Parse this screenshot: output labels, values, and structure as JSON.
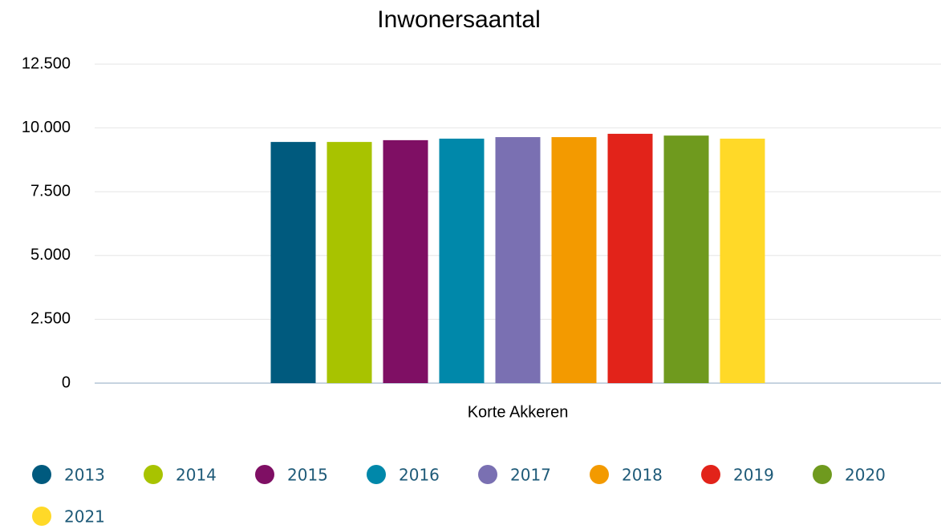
{
  "chart_data": {
    "type": "bar",
    "title": "Inwonersaantal",
    "categories": [
      "Korte Akkeren"
    ],
    "series": [
      {
        "name": "2013",
        "color": "#005a7e",
        "values": [
          9450
        ]
      },
      {
        "name": "2014",
        "color": "#a8c300",
        "values": [
          9450
        ]
      },
      {
        "name": "2015",
        "color": "#7f0f64",
        "values": [
          9520
        ]
      },
      {
        "name": "2016",
        "color": "#0088aa",
        "values": [
          9580
        ]
      },
      {
        "name": "2017",
        "color": "#7a70b2",
        "values": [
          9640
        ]
      },
      {
        "name": "2018",
        "color": "#f39a00",
        "values": [
          9640
        ]
      },
      {
        "name": "2019",
        "color": "#e2231a",
        "values": [
          9770
        ]
      },
      {
        "name": "2020",
        "color": "#6f9a1e",
        "values": [
          9700
        ]
      },
      {
        "name": "2021",
        "color": "#ffd928",
        "values": [
          9580
        ]
      }
    ],
    "ylim": [
      0,
      12500
    ],
    "yticks": [
      0,
      {
        "value": 2500,
        "label": "2.500"
      },
      {
        "value": 5000,
        "label": "5.000"
      },
      {
        "value": 7500,
        "label": "7.500"
      },
      {
        "value": 10000,
        "label": "10.000"
      },
      {
        "value": 12500,
        "label": "12.500"
      }
    ],
    "grid": true,
    "legend": "bottom"
  }
}
